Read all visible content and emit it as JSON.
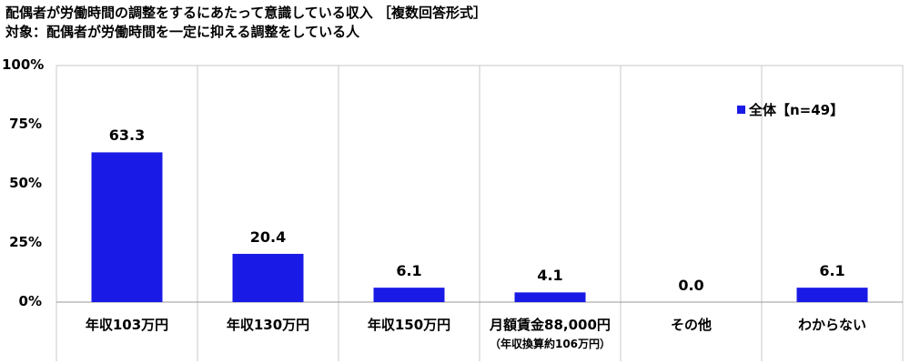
{
  "title": "配偶者が労働時間の調整をするにあたって意識している収入 ［複数回答形式］",
  "subtitle": "対象：配偶者が労働時間を一定に抑える調整をしている人",
  "colors": {
    "bar": "#1a1ae6",
    "grid": "#c8c8c8",
    "axis": "#999999"
  },
  "chart_data": {
    "type": "bar",
    "categories": [
      "年収103万円",
      "年収130万円",
      "年収150万円",
      "月額賃金88,000円",
      "その他",
      "わからない"
    ],
    "category_sublabels": [
      "",
      "",
      "",
      "（年収換算約106万円）",
      "",
      ""
    ],
    "series": [
      {
        "name": "全体【n=49】",
        "values": [
          63.3,
          20.4,
          6.1,
          4.1,
          0.0,
          6.1
        ]
      }
    ],
    "value_labels": [
      "63.3",
      "20.4",
      "6.1",
      "4.1",
      "0.0",
      "6.1"
    ],
    "y_ticks": [
      "0%",
      "25%",
      "50%",
      "75%",
      "100%"
    ],
    "ylim": [
      0,
      100
    ],
    "legend_position": "top-right"
  }
}
